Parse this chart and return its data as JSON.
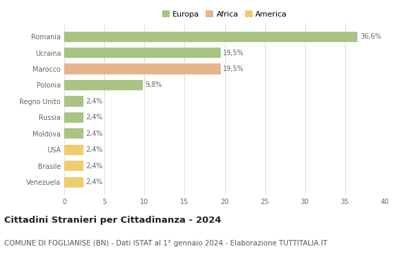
{
  "categories": [
    "Venezuela",
    "Brasile",
    "USA",
    "Moldova",
    "Russia",
    "Regno Unito",
    "Polonia",
    "Marocco",
    "Ucraina",
    "Romania"
  ],
  "values": [
    2.4,
    2.4,
    2.4,
    2.4,
    2.4,
    2.4,
    9.8,
    19.5,
    19.5,
    36.6
  ],
  "labels": [
    "2,4%",
    "2,4%",
    "2,4%",
    "2,4%",
    "2,4%",
    "2,4%",
    "9,8%",
    "19,5%",
    "19,5%",
    "36,6%"
  ],
  "colors": [
    "#f0cc6e",
    "#f0cc6e",
    "#f0cc6e",
    "#a8c484",
    "#a8c484",
    "#a8c484",
    "#a8c484",
    "#e8b48a",
    "#a8c484",
    "#a8c484"
  ],
  "legend": [
    {
      "label": "Europa",
      "color": "#a8c484"
    },
    {
      "label": "Africa",
      "color": "#e8b48a"
    },
    {
      "label": "America",
      "color": "#f0cc6e"
    }
  ],
  "title": "Cittadini Stranieri per Cittadinanza - 2024",
  "subtitle": "COMUNE DI FOGLIANISE (BN) - Dati ISTAT al 1° gennaio 2024 - Elaborazione TUTTITALIA.IT",
  "xlim": [
    0,
    40
  ],
  "xticks": [
    0,
    5,
    10,
    15,
    20,
    25,
    30,
    35,
    40
  ],
  "background_color": "#ffffff",
  "grid_color": "#dddddd",
  "bar_height": 0.65,
  "title_fontsize": 9.5,
  "subtitle_fontsize": 7.5,
  "label_fontsize": 7,
  "tick_fontsize": 7,
  "legend_fontsize": 8
}
